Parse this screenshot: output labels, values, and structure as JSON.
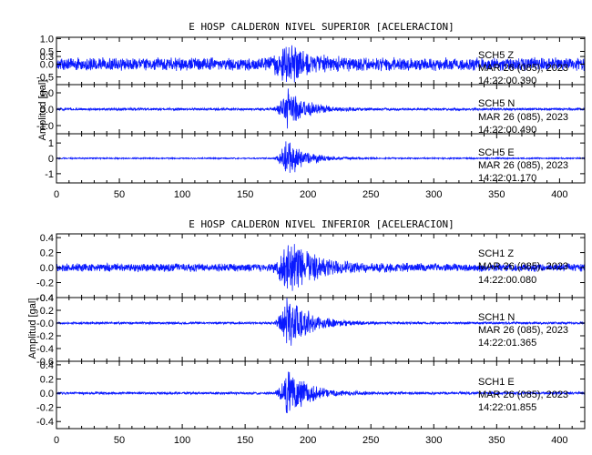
{
  "chart_data": [
    {
      "type": "line",
      "title": "E HOSP CALDERON NIVEL SUPERIOR [ACELERACION]",
      "ylabel": "Amplitud [gal]",
      "xlim": [
        0,
        420
      ],
      "x_ticks": [
        "0",
        "50",
        "100",
        "150",
        "200",
        "250",
        "300",
        "350",
        "400"
      ],
      "panels": [
        {
          "channel": "SCH5   Z",
          "date": "MAR 26 (085), 2023",
          "time": "14:22:00.390",
          "ylim": [
            -0.8,
            1.05
          ],
          "y_ticks": [
            "1.0",
            "0.5",
            "0.3",
            "0.0",
            "-0.5"
          ],
          "y_tick_values": [
            1.0,
            0.5,
            0.3,
            0.0,
            -0.5
          ],
          "noise": 0.28,
          "peak": 1.0,
          "event_start": 165,
          "event_peak": 182,
          "event_decay": 18
        },
        {
          "channel": "SCH5   N",
          "date": "MAR 26 (085), 2023",
          "time": "14:22:00.490",
          "ylim": [
            -1.5,
            1.5
          ],
          "y_ticks": [
            "1.0",
            "0.0",
            "-1.0"
          ],
          "y_tick_values": [
            1.0,
            0.0,
            -1.0
          ],
          "noise": 0.08,
          "peak": 1.45,
          "event_start": 170,
          "event_peak": 183,
          "event_decay": 16
        },
        {
          "channel": "SCH5   E",
          "date": "MAR 26 (085), 2023",
          "time": "14:22:01.170",
          "ylim": [
            -1.6,
            1.6
          ],
          "y_ticks": [
            "1",
            "0",
            "-1"
          ],
          "y_tick_values": [
            1,
            0,
            -1
          ],
          "noise": 0.05,
          "peak": 1.45,
          "event_start": 172,
          "event_peak": 183,
          "event_decay": 14
        }
      ]
    },
    {
      "type": "line",
      "title": "E HOSP CALDERON NIVEL INFERIOR [ACELERACION]",
      "ylabel": "Amplitud [gal]",
      "xlim": [
        0,
        420
      ],
      "x_ticks": [
        "0",
        "50",
        "100",
        "150",
        "200",
        "250",
        "300",
        "350",
        "400"
      ],
      "panels": [
        {
          "channel": "SCH1   Z",
          "date": "MAR 26 (085), 2023",
          "time": "14:22:00.080",
          "ylim": [
            -0.4,
            0.45
          ],
          "y_ticks": [
            "0.4",
            "0.2",
            "0.0",
            "-0.2",
            "-0.4"
          ],
          "y_tick_values": [
            0.4,
            0.2,
            0.0,
            -0.2,
            -0.4
          ],
          "noise": 0.06,
          "peak": 0.42,
          "event_start": 170,
          "event_peak": 183,
          "event_decay": 22
        },
        {
          "channel": "SCH1   N",
          "date": "MAR 26 (085), 2023",
          "time": "14:22:01.365",
          "ylim": [
            -0.6,
            0.4
          ],
          "y_ticks": [
            "0.4",
            "0.2",
            "-0.0",
            "-0.2",
            "-0.4",
            "-0.6"
          ],
          "y_tick_values": [
            0.4,
            0.2,
            0.0,
            -0.2,
            -0.4,
            -0.6
          ],
          "noise": 0.02,
          "peak": 0.55,
          "event_start": 172,
          "event_peak": 183,
          "event_decay": 16
        },
        {
          "channel": "SCH1   E",
          "date": "MAR 26 (085), 2023",
          "time": "14:22:01.855",
          "ylim": [
            -0.5,
            0.45
          ],
          "y_ticks": [
            "0.4",
            "0.2",
            "0.0",
            "-0.2",
            "-0.4"
          ],
          "y_tick_values": [
            0.4,
            0.2,
            0.0,
            -0.2,
            -0.4
          ],
          "noise": 0.02,
          "peak": 0.42,
          "event_start": 172,
          "event_peak": 183,
          "event_decay": 16
        }
      ]
    }
  ]
}
